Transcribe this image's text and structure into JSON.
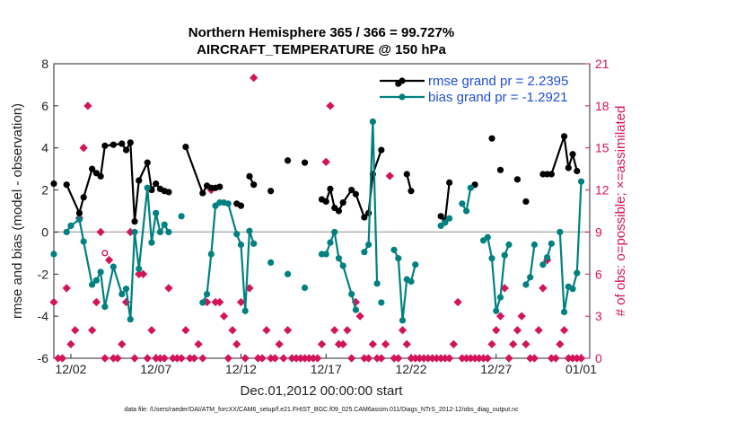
{
  "chart_data": {
    "type": "line",
    "title": "Northern Hemisphere 365 / 366 = 99.727%",
    "subtitle": "AIRCRAFT_TEMPERATURE @ 150 hPa",
    "xlabel": "Dec.01,2012 00:00:00 start",
    "ylabel": "rmse and bias (model - observation)",
    "ylabel_right": "# of obs: o=possible; ×=assimilated",
    "x_ticks": [
      "12/02",
      "12/07",
      "12/12",
      "12/17",
      "12/22",
      "12/27",
      "01/01"
    ],
    "x_tick_days": [
      1,
      6,
      11,
      16,
      21,
      26,
      31
    ],
    "xlim": [
      0,
      31.5
    ],
    "ylim": [
      -6,
      8
    ],
    "y_ticks": [
      -6,
      -4,
      -2,
      0,
      2,
      4,
      6,
      8
    ],
    "ylim_right": [
      0,
      21
    ],
    "y_ticks_right": [
      0,
      3,
      6,
      9,
      12,
      15,
      18,
      21
    ],
    "footnote": "data file: /Users/raeder/DAI/ATM_forcXX/CAM6_setup/f.e21.FHIST_BGC.f09_025.CAM6assim.011/Diags_NTrS_2012-12/obs_diag_output.nc",
    "colors": {
      "rmse": "#000000",
      "bias": "#008080",
      "obs": "#d4145a",
      "zero_line": "#b0b0b0"
    },
    "series": [
      {
        "name": "rmse grand pr = 2.2395",
        "points": [
          [
            0.0,
            2.3
          ],
          [
            0.75,
            2.25
          ],
          [
            1.5,
            0.9
          ],
          [
            1.75,
            1.65
          ],
          [
            2.25,
            3.0
          ],
          [
            2.5,
            2.8
          ],
          [
            2.75,
            2.65
          ],
          [
            3.0,
            4.1
          ],
          [
            3.5,
            4.15
          ],
          [
            4.0,
            4.2
          ],
          [
            4.25,
            3.9
          ],
          [
            4.5,
            4.25
          ],
          [
            4.75,
            0.5
          ],
          [
            5.0,
            2.45
          ],
          [
            5.5,
            3.3
          ],
          [
            5.75,
            2.0
          ],
          [
            6.0,
            2.3
          ],
          [
            6.25,
            2.05
          ],
          [
            6.5,
            1.95
          ],
          [
            6.75,
            1.9
          ],
          [
            7.75,
            4.05
          ],
          [
            8.75,
            1.85
          ],
          [
            9.0,
            2.2
          ],
          [
            9.25,
            2.1
          ],
          [
            9.5,
            2.1
          ],
          [
            9.75,
            2.15
          ],
          [
            10.75,
            1.35
          ],
          [
            11.0,
            1.25
          ],
          [
            11.5,
            2.65
          ],
          [
            11.75,
            2.25
          ],
          [
            12.75,
            1.95
          ],
          [
            13.75,
            3.4
          ],
          [
            14.75,
            3.3
          ],
          [
            15.75,
            1.55
          ],
          [
            16.0,
            1.45
          ],
          [
            16.25,
            2.05
          ],
          [
            16.5,
            1.15
          ],
          [
            16.75,
            1.0
          ],
          [
            17.0,
            1.4
          ],
          [
            17.5,
            2.0
          ],
          [
            17.75,
            1.8
          ],
          [
            18.25,
            0.7
          ],
          [
            18.5,
            0.9
          ],
          [
            18.75,
            2.75
          ],
          [
            19.25,
            3.9
          ],
          [
            20.25,
            7.05
          ],
          [
            20.75,
            2.75
          ],
          [
            21.0,
            1.95
          ],
          [
            22.75,
            0.75
          ],
          [
            23.0,
            0.55
          ],
          [
            23.25,
            2.35
          ],
          [
            24.75,
            2.25
          ],
          [
            25.75,
            4.45
          ],
          [
            26.25,
            2.95
          ],
          [
            27.25,
            2.5
          ],
          [
            27.75,
            1.45
          ],
          [
            28.75,
            2.75
          ],
          [
            29.0,
            2.75
          ],
          [
            29.25,
            2.75
          ],
          [
            30.0,
            4.55
          ],
          [
            30.25,
            3.05
          ],
          [
            30.5,
            3.7
          ],
          [
            30.75,
            2.9
          ]
        ],
        "segment_breaks": [
          0.75,
          7.75,
          10.75,
          11.5,
          12.75,
          13.75,
          14.75,
          15.75,
          20.25,
          20.75,
          22.75,
          24.75,
          25.75,
          26.25,
          27.25,
          27.75,
          28.75
        ]
      },
      {
        "name": "bias grand pr = -1.2921",
        "points": [
          [
            0.0,
            -1.05
          ],
          [
            0.75,
            0.0
          ],
          [
            1.0,
            0.3
          ],
          [
            1.5,
            0.6
          ],
          [
            1.75,
            -0.45
          ],
          [
            2.25,
            -2.5
          ],
          [
            2.5,
            -2.3
          ],
          [
            2.75,
            -1.9
          ],
          [
            3.0,
            -3.55
          ],
          [
            3.5,
            -1.65
          ],
          [
            4.0,
            -2.95
          ],
          [
            4.25,
            -2.7
          ],
          [
            4.5,
            -4.15
          ],
          [
            4.75,
            0.0
          ],
          [
            5.0,
            -1.75
          ],
          [
            5.5,
            2.1
          ],
          [
            5.75,
            -0.5
          ],
          [
            6.0,
            0.9
          ],
          [
            6.25,
            0.0
          ],
          [
            6.5,
            0.35
          ],
          [
            6.75,
            0.0
          ],
          [
            7.5,
            0.75
          ],
          [
            8.75,
            -3.35
          ],
          [
            9.0,
            -2.95
          ],
          [
            9.25,
            -1.05
          ],
          [
            9.5,
            1.25
          ],
          [
            9.75,
            1.4
          ],
          [
            10.0,
            1.4
          ],
          [
            10.25,
            1.35
          ],
          [
            10.75,
            -0.1
          ],
          [
            11.0,
            -0.6
          ],
          [
            11.25,
            -3.75
          ],
          [
            11.5,
            0.05
          ],
          [
            11.75,
            -0.55
          ],
          [
            12.75,
            -1.45
          ],
          [
            13.75,
            -2.0
          ],
          [
            14.75,
            -2.65
          ],
          [
            15.75,
            -1.05
          ],
          [
            16.0,
            -1.05
          ],
          [
            16.25,
            -0.5
          ],
          [
            16.5,
            0.0
          ],
          [
            16.75,
            -1.25
          ],
          [
            17.0,
            -1.6
          ],
          [
            17.5,
            -2.95
          ],
          [
            17.75,
            -3.7
          ],
          [
            18.25,
            -0.95
          ],
          [
            18.5,
            -0.6
          ],
          [
            18.75,
            5.25
          ],
          [
            19.0,
            -2.45
          ],
          [
            19.25,
            -3.35
          ],
          [
            20.0,
            -0.85
          ],
          [
            20.25,
            -1.25
          ],
          [
            20.5,
            -4.2
          ],
          [
            20.75,
            -2.25
          ],
          [
            21.0,
            -2.35
          ],
          [
            21.25,
            -1.55
          ],
          [
            22.75,
            0.3
          ],
          [
            23.0,
            0.45
          ],
          [
            23.25,
            0.65
          ],
          [
            24.0,
            1.35
          ],
          [
            24.25,
            1.0
          ],
          [
            24.5,
            2.1
          ],
          [
            25.25,
            -0.4
          ],
          [
            25.5,
            -0.25
          ],
          [
            25.75,
            -1.25
          ],
          [
            26.0,
            -3.75
          ],
          [
            26.25,
            -3.1
          ],
          [
            26.5,
            -1.1
          ],
          [
            26.75,
            -0.6
          ],
          [
            27.75,
            -2.5
          ],
          [
            28.0,
            -2.15
          ],
          [
            28.25,
            -0.6
          ],
          [
            28.75,
            -1.55
          ],
          [
            29.0,
            -1.2
          ],
          [
            29.25,
            -0.55
          ],
          [
            29.75,
            0.0
          ],
          [
            30.0,
            -3.8
          ],
          [
            30.25,
            -2.6
          ],
          [
            30.5,
            -2.7
          ],
          [
            30.75,
            -1.95
          ],
          [
            31.0,
            2.4
          ]
        ],
        "segment_breaks": [
          0.75,
          7.5,
          8.75,
          12.75,
          13.75,
          14.75,
          15.75,
          18.25,
          19.25,
          20.0,
          22.75,
          24.0,
          25.25,
          27.75,
          28.75,
          29.75
        ]
      },
      {
        "name": "obs",
        "points": [
          [
            0.0,
            4
          ],
          [
            0.25,
            0
          ],
          [
            0.5,
            0
          ],
          [
            0.75,
            5
          ],
          [
            1.0,
            1
          ],
          [
            1.25,
            2
          ],
          [
            1.5,
            10
          ],
          [
            1.75,
            15
          ],
          [
            2.0,
            18
          ],
          [
            2.25,
            2
          ],
          [
            2.5,
            4
          ],
          [
            2.75,
            9
          ],
          [
            3.0,
            0
          ],
          [
            3.25,
            7
          ],
          [
            3.5,
            0
          ],
          [
            3.75,
            0
          ],
          [
            4.0,
            1
          ],
          [
            4.25,
            4
          ],
          [
            4.5,
            9
          ],
          [
            4.75,
            0
          ],
          [
            5.0,
            6
          ],
          [
            5.25,
            6
          ],
          [
            5.5,
            0
          ],
          [
            5.75,
            2
          ],
          [
            6.0,
            0
          ],
          [
            6.25,
            0
          ],
          [
            6.5,
            0
          ],
          [
            6.75,
            5
          ],
          [
            7.0,
            0
          ],
          [
            7.25,
            0
          ],
          [
            7.5,
            0
          ],
          [
            7.75,
            2
          ],
          [
            8.0,
            0
          ],
          [
            8.25,
            0
          ],
          [
            8.5,
            1
          ],
          [
            8.75,
            0
          ],
          [
            9.0,
            4
          ],
          [
            9.25,
            12
          ],
          [
            9.5,
            4
          ],
          [
            9.75,
            4
          ],
          [
            10.0,
            3
          ],
          [
            10.25,
            0
          ],
          [
            10.5,
            2
          ],
          [
            10.75,
            1
          ],
          [
            11.0,
            4
          ],
          [
            11.25,
            0
          ],
          [
            11.5,
            5
          ],
          [
            11.75,
            20
          ],
          [
            12.0,
            0
          ],
          [
            12.25,
            0
          ],
          [
            12.5,
            2
          ],
          [
            12.75,
            0
          ],
          [
            13.0,
            0
          ],
          [
            13.25,
            1
          ],
          [
            13.5,
            0
          ],
          [
            13.75,
            2
          ],
          [
            14.0,
            0
          ],
          [
            14.25,
            0
          ],
          [
            14.5,
            0
          ],
          [
            14.75,
            0
          ],
          [
            15.0,
            0
          ],
          [
            15.25,
            0
          ],
          [
            15.5,
            0
          ],
          [
            15.75,
            1
          ],
          [
            16.0,
            14
          ],
          [
            16.25,
            18
          ],
          [
            16.5,
            2
          ],
          [
            16.75,
            1
          ],
          [
            17.0,
            1
          ],
          [
            17.25,
            2
          ],
          [
            17.5,
            0
          ],
          [
            17.75,
            4
          ],
          [
            18.0,
            3
          ],
          [
            18.25,
            0
          ],
          [
            18.5,
            0
          ],
          [
            18.75,
            1
          ],
          [
            19.0,
            0
          ],
          [
            19.25,
            0
          ],
          [
            19.5,
            1
          ],
          [
            19.75,
            13
          ],
          [
            20.0,
            0
          ],
          [
            20.25,
            0
          ],
          [
            20.5,
            2
          ],
          [
            20.75,
            1
          ],
          [
            21.0,
            0
          ],
          [
            21.25,
            0
          ],
          [
            21.5,
            0
          ],
          [
            21.75,
            0
          ],
          [
            22.0,
            0
          ],
          [
            22.25,
            0
          ],
          [
            22.5,
            0
          ],
          [
            22.75,
            0
          ],
          [
            23.0,
            0
          ],
          [
            23.25,
            0
          ],
          [
            23.5,
            1
          ],
          [
            23.75,
            4
          ],
          [
            24.0,
            0
          ],
          [
            24.25,
            0
          ],
          [
            24.5,
            0
          ],
          [
            24.75,
            0
          ],
          [
            25.0,
            0
          ],
          [
            25.25,
            0
          ],
          [
            25.5,
            0
          ],
          [
            25.75,
            1
          ],
          [
            26.0,
            2
          ],
          [
            26.25,
            3
          ],
          [
            26.5,
            5
          ],
          [
            26.75,
            0
          ],
          [
            27.0,
            1
          ],
          [
            27.25,
            2
          ],
          [
            27.5,
            3
          ],
          [
            27.75,
            1
          ],
          [
            28.0,
            0
          ],
          [
            28.25,
            0
          ],
          [
            28.5,
            2
          ],
          [
            28.75,
            5
          ],
          [
            29.0,
            7
          ],
          [
            29.25,
            0
          ],
          [
            29.5,
            0
          ],
          [
            29.75,
            1
          ],
          [
            30.0,
            2
          ],
          [
            30.25,
            0
          ],
          [
            30.5,
            0
          ],
          [
            30.75,
            0
          ],
          [
            31.0,
            0
          ]
        ],
        "possible_points": [
          [
            3.0,
            7.5
          ]
        ]
      }
    ]
  }
}
